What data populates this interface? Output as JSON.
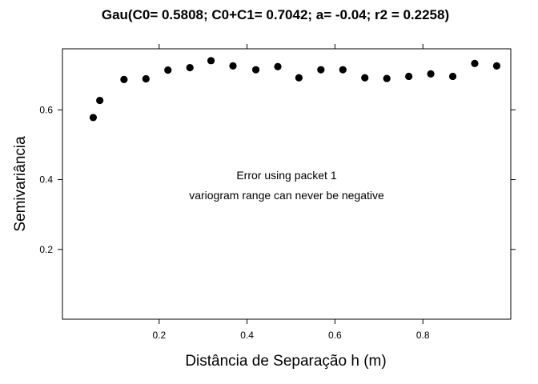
{
  "chart_data": {
    "type": "scatter",
    "title": "Gau(C0= 0.5808; C0+C1= 0.7042; a= -0.04; r2 = 0.2258)",
    "xlabel": "Distância de Separação h (m)",
    "ylabel": "Semivariância",
    "xlim": [
      -0.02,
      1.0
    ],
    "ylim": [
      0.0,
      0.775
    ],
    "x_ticks": [
      0.2,
      0.4,
      0.6,
      0.8
    ],
    "x_tick_labels": [
      "0.2",
      "0.4",
      "0.6",
      "0.8"
    ],
    "y_ticks": [
      0.2,
      0.4,
      0.6
    ],
    "y_tick_labels": [
      "0.2",
      "0.4",
      "0.6"
    ],
    "grid": false,
    "point_color": "#000000",
    "x": [
      0.05,
      0.065,
      0.12,
      0.17,
      0.22,
      0.27,
      0.318,
      0.368,
      0.42,
      0.47,
      0.518,
      0.568,
      0.618,
      0.668,
      0.718,
      0.768,
      0.818,
      0.868,
      0.918,
      0.968
    ],
    "y": [
      0.578,
      0.627,
      0.687,
      0.689,
      0.714,
      0.721,
      0.741,
      0.726,
      0.715,
      0.724,
      0.692,
      0.715,
      0.715,
      0.692,
      0.69,
      0.696,
      0.703,
      0.696,
      0.733,
      0.726
    ],
    "annotations": [
      "Error using packet 1",
      "variogram range can never be negative"
    ]
  }
}
